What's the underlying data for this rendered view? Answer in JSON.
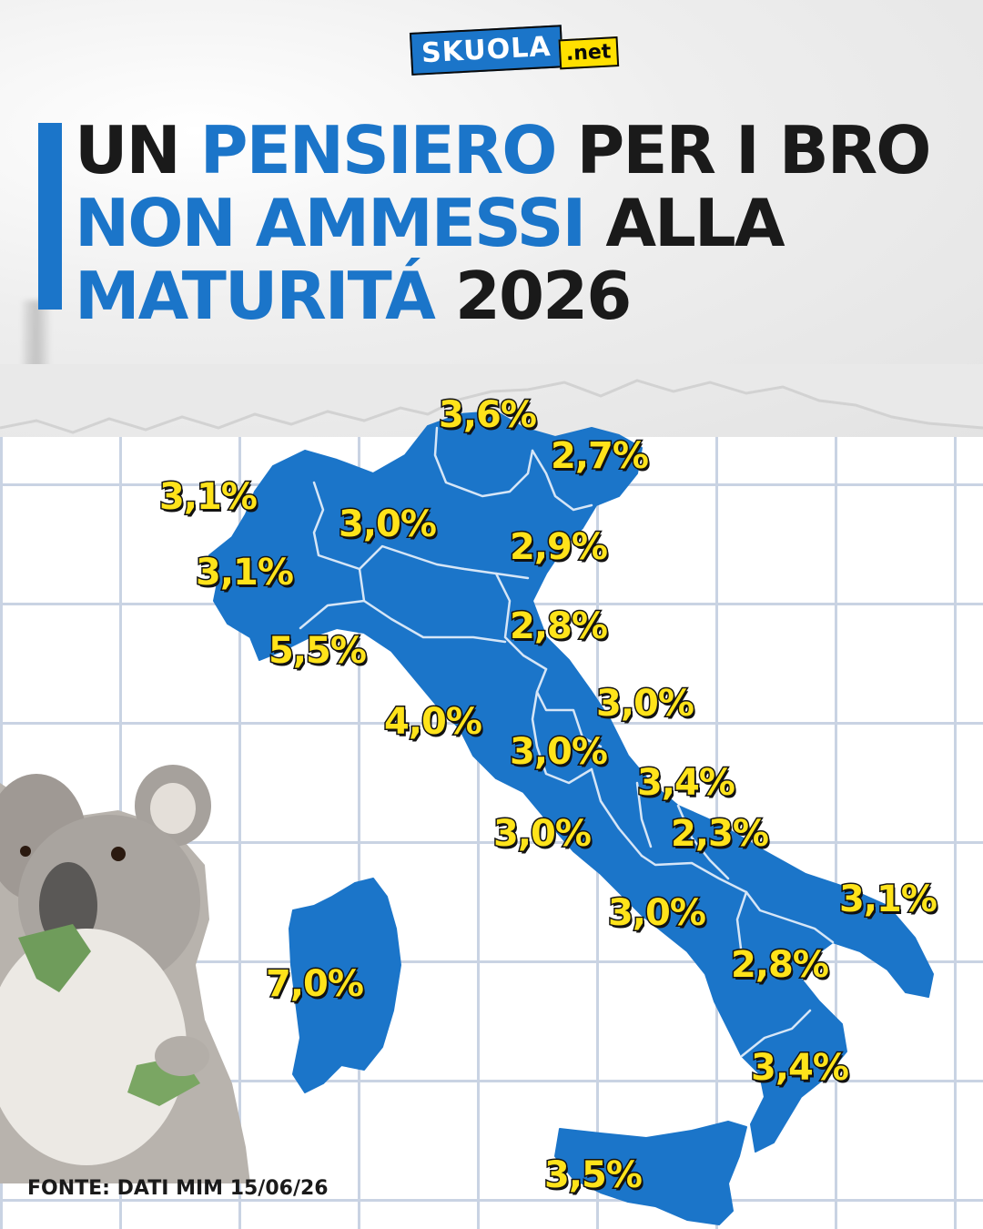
{
  "brand": {
    "name": "SKUOLA",
    "suffix": ".net"
  },
  "title": {
    "line1_a": "UN ",
    "line1_b": "PENSIERO",
    "line1_c": " PER I BRO",
    "line2_a": "NON AMMESSI",
    "line2_b": " ALLA",
    "line3_a": "MATURITÁ",
    "line3_b": " 2026"
  },
  "colors": {
    "blue": "#1b75c9",
    "yellow": "#ffe31a",
    "dark": "#1a1a1a"
  },
  "regions": [
    {
      "id": "valle-d-aosta",
      "value": "3,1%"
    },
    {
      "id": "lombardia",
      "value": "3,0%"
    },
    {
      "id": "piemonte",
      "value": "3,1%"
    },
    {
      "id": "trentino-alto-adige",
      "value": "3,6%"
    },
    {
      "id": "friuli-venezia-giulia",
      "value": "2,7%"
    },
    {
      "id": "veneto",
      "value": "2,9%"
    },
    {
      "id": "emilia-romagna",
      "value": "2,8%"
    },
    {
      "id": "liguria",
      "value": "5,5%"
    },
    {
      "id": "marche",
      "value": "3,0%"
    },
    {
      "id": "toscana",
      "value": "4,0%"
    },
    {
      "id": "umbria",
      "value": "3,0%"
    },
    {
      "id": "abruzzo",
      "value": "3,4%"
    },
    {
      "id": "lazio",
      "value": "3,0%"
    },
    {
      "id": "molise",
      "value": "2,3%"
    },
    {
      "id": "puglia",
      "value": "3,1%"
    },
    {
      "id": "campania",
      "value": "3,0%"
    },
    {
      "id": "basilicata",
      "value": "2,8%"
    },
    {
      "id": "sardegna",
      "value": "7,0%"
    },
    {
      "id": "calabria",
      "value": "3,4%"
    },
    {
      "id": "sicilia",
      "value": "3,5%"
    }
  ],
  "source": "FONTE: DATI MIM 15/06/26"
}
